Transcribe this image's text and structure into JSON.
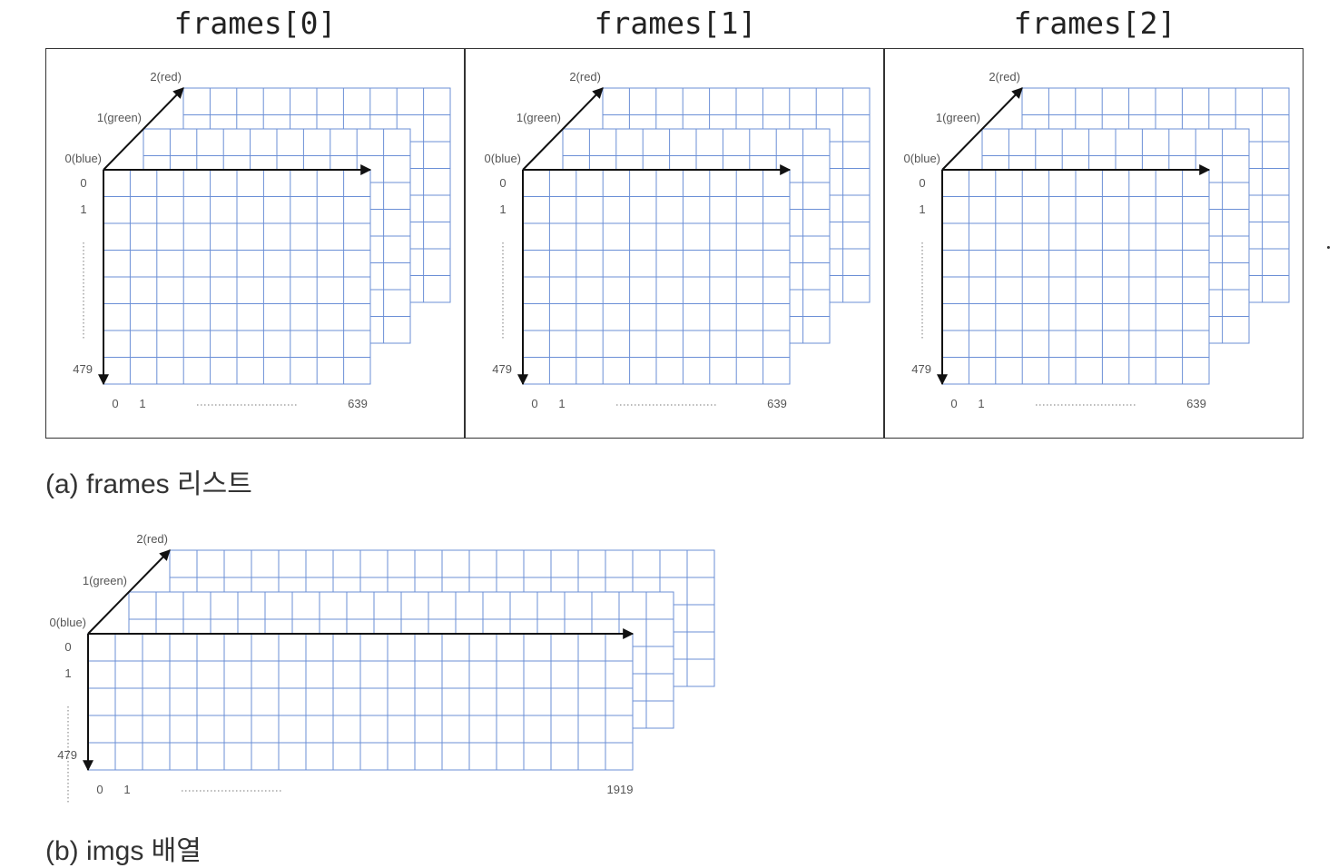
{
  "panels": [
    {
      "title": "frames[0]"
    },
    {
      "title": "frames[1]"
    },
    {
      "title": "frames[2]"
    }
  ],
  "frame_diagram": {
    "channel_labels": [
      "0(blue)",
      "1(green)",
      "2(red)"
    ],
    "row_labels": {
      "first": "0",
      "second": "1",
      "last": "479"
    },
    "col_labels": {
      "first": "0",
      "second": "1",
      "last": "639"
    }
  },
  "imgs_diagram": {
    "channel_labels": [
      "0(blue)",
      "1(green)",
      "2(red)"
    ],
    "row_labels": {
      "first": "0",
      "second": "1",
      "last": "479"
    },
    "col_labels": {
      "first": "0",
      "second": "1",
      "last": "1919"
    }
  },
  "captions": {
    "a": "(a) frames 리스트",
    "b": "(b) imgs 배열"
  },
  "colors": {
    "grid": "#6b8fd6",
    "arrow": "#111111",
    "box_border": "#333333"
  }
}
